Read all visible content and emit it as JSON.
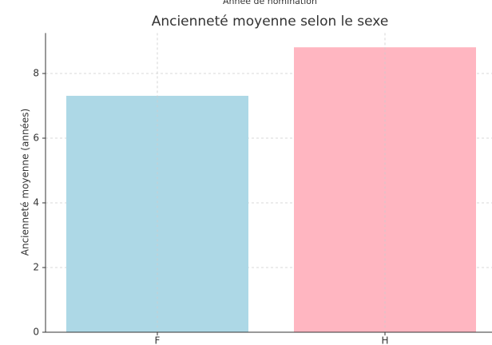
{
  "chart_data": {
    "type": "bar",
    "top_text": "Année de nomination",
    "title": "Ancienneté moyenne selon le sexe",
    "ylabel": "Ancienneté moyenne (années)",
    "categories": [
      "F",
      "H"
    ],
    "values": [
      7.31,
      8.81
    ],
    "colors": [
      "#add8e6",
      "#ffb6c1"
    ],
    "ylim": [
      0,
      9.25
    ],
    "yticks": [
      0,
      2,
      4,
      6,
      8
    ],
    "grid": true
  }
}
